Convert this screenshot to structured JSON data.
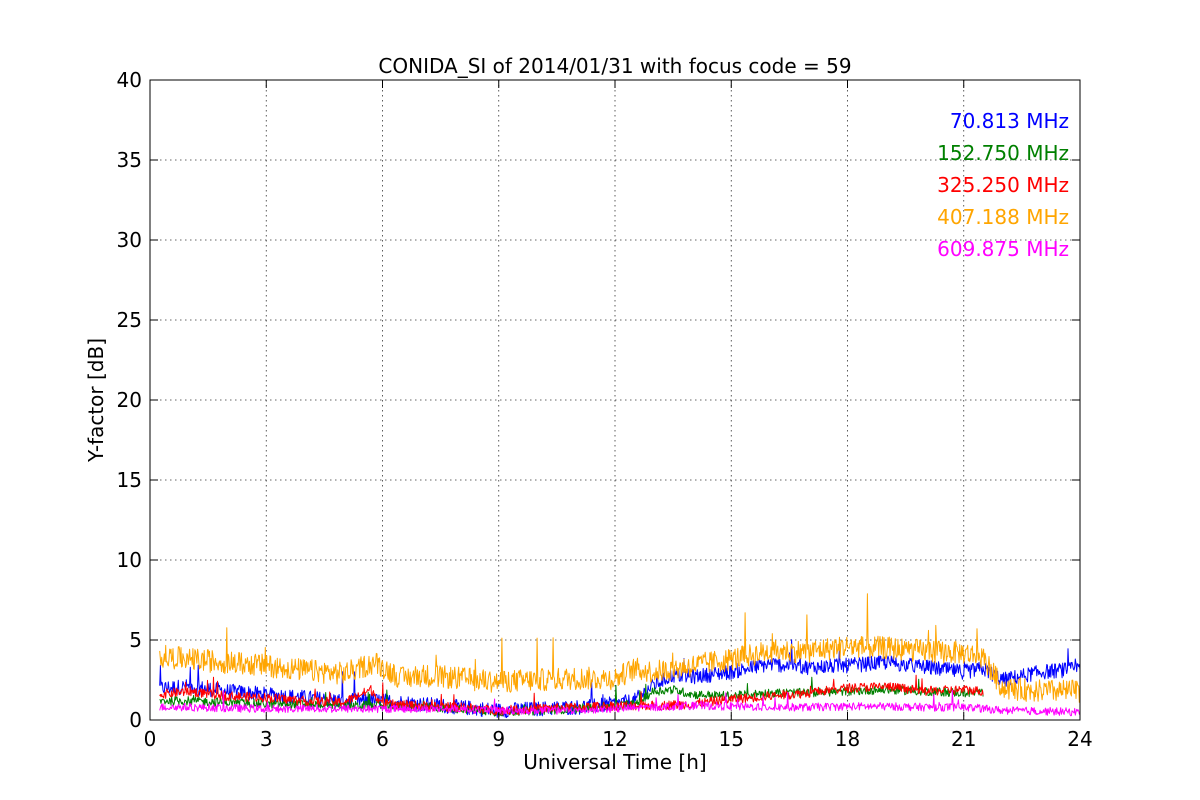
{
  "chart_data": {
    "type": "line",
    "title": "CONIDA_SI of 2014/01/31 with focus code = 59",
    "xlabel": "Universal Time [h]",
    "ylabel": "Y-factor [dB]",
    "xlim": [
      0,
      24
    ],
    "ylim": [
      0,
      40
    ],
    "xticks": [
      0,
      3,
      6,
      9,
      12,
      15,
      18,
      21,
      24
    ],
    "yticks": [
      0,
      5,
      10,
      15,
      20,
      25,
      30,
      35,
      40
    ],
    "xtick_labels": [
      "0",
      "3",
      "6",
      "9",
      "12",
      "15",
      "18",
      "21",
      "24"
    ],
    "ytick_labels": [
      "0",
      "5",
      "10",
      "15",
      "20",
      "25",
      "30",
      "35",
      "40"
    ],
    "grid": true,
    "legend_position": "top-right",
    "series": [
      {
        "name": "70.813 MHz",
        "color": "#0000ff",
        "x": [
          0.25,
          1,
          2,
          3,
          4,
          5,
          6,
          7,
          8,
          9,
          10,
          11,
          12,
          12.5,
          13,
          13.5,
          14,
          15,
          16,
          17,
          18,
          19,
          20,
          21,
          21.5,
          22,
          23,
          24
        ],
        "y": [
          2.0,
          2.1,
          1.8,
          1.6,
          1.4,
          1.2,
          1.2,
          1.0,
          0.8,
          0.6,
          0.7,
          0.8,
          1.0,
          1.2,
          2.2,
          2.8,
          2.7,
          3.0,
          3.5,
          3.3,
          3.4,
          3.6,
          3.3,
          3.0,
          3.2,
          2.5,
          3.0,
          3.2
        ]
      },
      {
        "name": "152.750 MHz",
        "color": "#008000",
        "x": [
          0.25,
          1,
          2,
          3,
          4,
          5,
          6,
          7,
          8,
          9,
          10,
          11,
          12,
          12.5,
          13,
          13.5,
          14,
          15,
          16,
          17,
          18,
          19,
          20,
          21,
          21.5
        ],
        "y": [
          1.2,
          1.2,
          1.1,
          1.0,
          1.0,
          0.9,
          0.9,
          0.8,
          0.7,
          0.5,
          0.6,
          0.7,
          0.9,
          1.0,
          1.8,
          1.9,
          1.6,
          1.5,
          1.7,
          1.7,
          1.8,
          1.9,
          1.8,
          1.7,
          1.7
        ]
      },
      {
        "name": "325.250 MHz",
        "color": "#ff0000",
        "x": [
          0.25,
          1,
          2,
          3,
          4,
          5,
          5.7,
          6,
          7,
          8,
          9,
          10,
          11,
          12,
          13,
          14,
          15,
          16,
          17,
          18,
          19,
          20,
          21,
          21.5
        ],
        "y": [
          1.6,
          1.8,
          1.5,
          1.4,
          1.2,
          1.1,
          1.9,
          1.0,
          0.9,
          0.8,
          0.6,
          0.7,
          0.8,
          0.9,
          0.9,
          1.0,
          1.3,
          1.5,
          1.7,
          2.0,
          2.1,
          1.8,
          1.9,
          1.8
        ]
      },
      {
        "name": "407.188 MHz",
        "color": "#ffa500",
        "x": [
          0.25,
          1,
          2,
          3,
          4,
          5,
          5.8,
          6.5,
          7,
          8,
          9,
          10,
          11,
          12,
          12.5,
          13,
          14,
          15,
          16,
          17,
          18,
          19,
          20,
          21,
          21.5,
          22,
          23,
          24
        ],
        "y": [
          4.0,
          3.8,
          3.6,
          3.4,
          3.1,
          2.9,
          3.6,
          2.6,
          2.8,
          2.6,
          2.4,
          2.5,
          2.6,
          2.6,
          3.2,
          3.0,
          3.4,
          3.8,
          4.3,
          4.3,
          4.6,
          4.5,
          4.3,
          4.2,
          3.9,
          2.0,
          1.8,
          1.8
        ]
      },
      {
        "name": "609.875 MHz",
        "color": "#ff00ff",
        "x": [
          0.25,
          1,
          2,
          3,
          4,
          5,
          6,
          7,
          8,
          9,
          10,
          11,
          12,
          13,
          14,
          15,
          16,
          17,
          18,
          19,
          20,
          21,
          22,
          23,
          24
        ],
        "y": [
          0.8,
          0.8,
          0.75,
          0.7,
          0.7,
          0.7,
          0.7,
          0.7,
          0.7,
          0.6,
          0.6,
          0.6,
          0.7,
          0.8,
          0.9,
          0.85,
          0.8,
          0.8,
          0.85,
          0.85,
          0.8,
          0.8,
          0.6,
          0.55,
          0.5
        ]
      }
    ]
  }
}
